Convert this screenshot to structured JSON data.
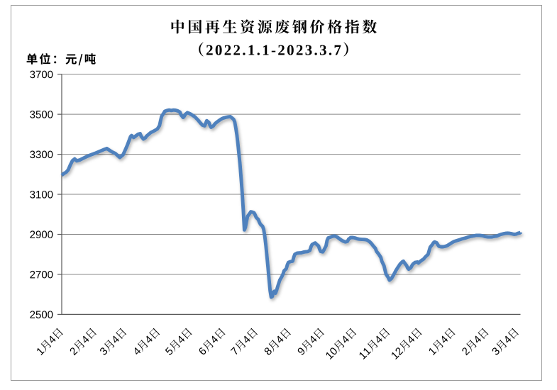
{
  "page": {
    "background": "#ffffff"
  },
  "header": {
    "title": "中国再生资源废钢价格指数",
    "subtitle": "（2022.1.1-2023.3.7）",
    "unit_label": "单位：元/吨"
  },
  "chart_data": {
    "type": "line",
    "title": "中国再生资源废钢价格指数",
    "subtitle": "（2022.1.1-2023.3.7）",
    "unit": "元/吨",
    "unit_label": "单位：元/吨",
    "ylim": [
      2500,
      3700
    ],
    "y_ticks": [
      2500,
      2700,
      2900,
      3100,
      3300,
      3500,
      3700
    ],
    "x_range": [
      "2022-01-04",
      "2023-03-07"
    ],
    "x_ticks": [
      {
        "label": "1月4日",
        "date": "2022-01-04"
      },
      {
        "label": "2月4日",
        "date": "2022-02-04"
      },
      {
        "label": "3月4日",
        "date": "2022-03-04"
      },
      {
        "label": "4月4日",
        "date": "2022-04-04"
      },
      {
        "label": "5月4日",
        "date": "2022-05-04"
      },
      {
        "label": "6月4日",
        "date": "2022-06-04"
      },
      {
        "label": "7月4日",
        "date": "2022-07-04"
      },
      {
        "label": "8月4日",
        "date": "2022-08-04"
      },
      {
        "label": "9月4日",
        "date": "2022-09-04"
      },
      {
        "label": "10月4日",
        "date": "2022-10-04"
      },
      {
        "label": "11月4日",
        "date": "2022-11-04"
      },
      {
        "label": "12月4日",
        "date": "2022-12-04"
      },
      {
        "label": "1月4日",
        "date": "2023-01-04"
      },
      {
        "label": "2月4日",
        "date": "2023-02-04"
      },
      {
        "label": "3月4日",
        "date": "2023-03-04"
      }
    ],
    "grid": "horizontal",
    "legend": "none",
    "line_color": "#4F81BD",
    "series": [
      {
        "name": "废钢价格指数",
        "points": [
          [
            "2022-01-04",
            3195
          ],
          [
            "2022-01-06",
            3204
          ],
          [
            "2022-01-08",
            3210
          ],
          [
            "2022-01-10",
            3222
          ],
          [
            "2022-01-12",
            3247
          ],
          [
            "2022-01-14",
            3268
          ],
          [
            "2022-01-16",
            3277
          ],
          [
            "2022-01-18",
            3267
          ],
          [
            "2022-01-21",
            3272
          ],
          [
            "2022-01-24",
            3280
          ],
          [
            "2022-01-27",
            3288
          ],
          [
            "2022-01-31",
            3297
          ],
          [
            "2022-02-04",
            3305
          ],
          [
            "2022-02-08",
            3314
          ],
          [
            "2022-02-12",
            3323
          ],
          [
            "2022-02-15",
            3329
          ],
          [
            "2022-02-17",
            3322
          ],
          [
            "2022-02-19",
            3315
          ],
          [
            "2022-02-21",
            3309
          ],
          [
            "2022-02-23",
            3304
          ],
          [
            "2022-02-25",
            3294
          ],
          [
            "2022-02-27",
            3284
          ],
          [
            "2022-03-02",
            3297
          ],
          [
            "2022-03-04",
            3320
          ],
          [
            "2022-03-06",
            3345
          ],
          [
            "2022-03-07",
            3359
          ],
          [
            "2022-03-09",
            3388
          ],
          [
            "2022-03-10",
            3394
          ],
          [
            "2022-03-11",
            3389
          ],
          [
            "2022-03-12",
            3384
          ],
          [
            "2022-03-14",
            3392
          ],
          [
            "2022-03-16",
            3400
          ],
          [
            "2022-03-18",
            3403
          ],
          [
            "2022-03-19",
            3390
          ],
          [
            "2022-03-21",
            3376
          ],
          [
            "2022-03-23",
            3383
          ],
          [
            "2022-03-24",
            3391
          ],
          [
            "2022-03-26",
            3400
          ],
          [
            "2022-03-28",
            3409
          ],
          [
            "2022-03-30",
            3414
          ],
          [
            "2022-04-01",
            3420
          ],
          [
            "2022-04-03",
            3427
          ],
          [
            "2022-04-05",
            3443
          ],
          [
            "2022-04-06",
            3468
          ],
          [
            "2022-04-07",
            3490
          ],
          [
            "2022-04-09",
            3506
          ],
          [
            "2022-04-10",
            3515
          ],
          [
            "2022-04-12",
            3519
          ],
          [
            "2022-04-14",
            3521
          ],
          [
            "2022-04-16",
            3519
          ],
          [
            "2022-04-18",
            3521
          ],
          [
            "2022-04-20",
            3520
          ],
          [
            "2022-04-22",
            3517
          ],
          [
            "2022-04-24",
            3511
          ],
          [
            "2022-04-25",
            3497
          ],
          [
            "2022-04-27",
            3484
          ],
          [
            "2022-04-28",
            3490
          ],
          [
            "2022-04-29",
            3499
          ],
          [
            "2022-05-01",
            3508
          ],
          [
            "2022-05-02",
            3506
          ],
          [
            "2022-05-04",
            3501
          ],
          [
            "2022-05-06",
            3494
          ],
          [
            "2022-05-08",
            3487
          ],
          [
            "2022-05-09",
            3481
          ],
          [
            "2022-05-11",
            3470
          ],
          [
            "2022-05-13",
            3457
          ],
          [
            "2022-05-15",
            3446
          ],
          [
            "2022-05-17",
            3442
          ],
          [
            "2022-05-18",
            3455
          ],
          [
            "2022-05-19",
            3468
          ],
          [
            "2022-05-21",
            3459
          ],
          [
            "2022-05-22",
            3445
          ],
          [
            "2022-05-23",
            3435
          ],
          [
            "2022-05-25",
            3441
          ],
          [
            "2022-05-26",
            3448
          ],
          [
            "2022-05-27",
            3455
          ],
          [
            "2022-05-29",
            3463
          ],
          [
            "2022-05-31",
            3471
          ],
          [
            "2022-06-02",
            3478
          ],
          [
            "2022-06-04",
            3482
          ],
          [
            "2022-06-06",
            3485
          ],
          [
            "2022-06-08",
            3487
          ],
          [
            "2022-06-10",
            3488
          ],
          [
            "2022-06-11",
            3484
          ],
          [
            "2022-06-13",
            3475
          ],
          [
            "2022-06-14",
            3462
          ],
          [
            "2022-06-15",
            3432
          ],
          [
            "2022-06-16",
            3398
          ],
          [
            "2022-06-17",
            3352
          ],
          [
            "2022-06-18",
            3300
          ],
          [
            "2022-06-19",
            3248
          ],
          [
            "2022-06-20",
            3180
          ],
          [
            "2022-06-21",
            3105
          ],
          [
            "2022-06-22",
            3020
          ],
          [
            "2022-06-23",
            2922
          ],
          [
            "2022-06-24",
            2935
          ],
          [
            "2022-06-25",
            2965
          ],
          [
            "2022-06-26",
            2990
          ],
          [
            "2022-06-28",
            3005
          ],
          [
            "2022-06-29",
            3013
          ],
          [
            "2022-06-30",
            3012
          ],
          [
            "2022-07-02",
            3008
          ],
          [
            "2022-07-03",
            2998
          ],
          [
            "2022-07-04",
            2985
          ],
          [
            "2022-07-06",
            2974
          ],
          [
            "2022-07-07",
            2960
          ],
          [
            "2022-07-08",
            2950
          ],
          [
            "2022-07-10",
            2940
          ],
          [
            "2022-07-11",
            2925
          ],
          [
            "2022-07-12",
            2890
          ],
          [
            "2022-07-13",
            2845
          ],
          [
            "2022-07-14",
            2790
          ],
          [
            "2022-07-15",
            2735
          ],
          [
            "2022-07-16",
            2675
          ],
          [
            "2022-07-17",
            2618
          ],
          [
            "2022-07-18",
            2586
          ],
          [
            "2022-07-19",
            2590
          ],
          [
            "2022-07-20",
            2612
          ],
          [
            "2022-07-21",
            2616
          ],
          [
            "2022-07-22",
            2606
          ],
          [
            "2022-07-23",
            2620
          ],
          [
            "2022-07-24",
            2638
          ],
          [
            "2022-07-25",
            2655
          ],
          [
            "2022-07-26",
            2672
          ],
          [
            "2022-07-28",
            2690
          ],
          [
            "2022-07-29",
            2702
          ],
          [
            "2022-07-30",
            2718
          ],
          [
            "2022-08-01",
            2728
          ],
          [
            "2022-08-02",
            2748
          ],
          [
            "2022-08-03",
            2760
          ],
          [
            "2022-08-05",
            2764
          ],
          [
            "2022-08-07",
            2766
          ],
          [
            "2022-08-08",
            2786
          ],
          [
            "2022-08-09",
            2800
          ],
          [
            "2022-08-11",
            2806
          ],
          [
            "2022-08-13",
            2807
          ],
          [
            "2022-08-15",
            2808
          ],
          [
            "2022-08-17",
            2811
          ],
          [
            "2022-08-19",
            2813
          ],
          [
            "2022-08-21",
            2814
          ],
          [
            "2022-08-23",
            2820
          ],
          [
            "2022-08-24",
            2838
          ],
          [
            "2022-08-25",
            2849
          ],
          [
            "2022-08-27",
            2855
          ],
          [
            "2022-08-28",
            2857
          ],
          [
            "2022-08-29",
            2851
          ],
          [
            "2022-08-31",
            2842
          ],
          [
            "2022-09-01",
            2826
          ],
          [
            "2022-09-02",
            2815
          ],
          [
            "2022-09-04",
            2812
          ],
          [
            "2022-09-05",
            2821
          ],
          [
            "2022-09-07",
            2843
          ],
          [
            "2022-09-08",
            2870
          ],
          [
            "2022-09-09",
            2882
          ],
          [
            "2022-09-11",
            2886
          ],
          [
            "2022-09-13",
            2890
          ],
          [
            "2022-09-15",
            2892
          ],
          [
            "2022-09-17",
            2888
          ],
          [
            "2022-09-19",
            2880
          ],
          [
            "2022-09-21",
            2872
          ],
          [
            "2022-09-23",
            2866
          ],
          [
            "2022-09-25",
            2862
          ],
          [
            "2022-09-27",
            2865
          ],
          [
            "2022-09-28",
            2876
          ],
          [
            "2022-09-30",
            2884
          ],
          [
            "2022-10-02",
            2884
          ],
          [
            "2022-10-04",
            2882
          ],
          [
            "2022-10-06",
            2878
          ],
          [
            "2022-10-08",
            2876
          ],
          [
            "2022-10-10",
            2875
          ],
          [
            "2022-10-13",
            2874
          ],
          [
            "2022-10-15",
            2872
          ],
          [
            "2022-10-17",
            2866
          ],
          [
            "2022-10-19",
            2856
          ],
          [
            "2022-10-21",
            2842
          ],
          [
            "2022-10-23",
            2830
          ],
          [
            "2022-10-24",
            2815
          ],
          [
            "2022-10-26",
            2802
          ],
          [
            "2022-10-28",
            2785
          ],
          [
            "2022-10-29",
            2765
          ],
          [
            "2022-10-31",
            2743
          ],
          [
            "2022-11-01",
            2720
          ],
          [
            "2022-11-02",
            2700
          ],
          [
            "2022-11-04",
            2684
          ],
          [
            "2022-11-05",
            2671
          ],
          [
            "2022-11-07",
            2680
          ],
          [
            "2022-11-09",
            2698
          ],
          [
            "2022-11-11",
            2719
          ],
          [
            "2022-11-13",
            2736
          ],
          [
            "2022-11-15",
            2752
          ],
          [
            "2022-11-17",
            2763
          ],
          [
            "2022-11-18",
            2766
          ],
          [
            "2022-11-19",
            2758
          ],
          [
            "2022-11-21",
            2744
          ],
          [
            "2022-11-22",
            2732
          ],
          [
            "2022-11-23",
            2726
          ],
          [
            "2022-11-25",
            2734
          ],
          [
            "2022-11-26",
            2744
          ],
          [
            "2022-11-27",
            2752
          ],
          [
            "2022-11-29",
            2760
          ],
          [
            "2022-12-01",
            2762
          ],
          [
            "2022-12-02",
            2757
          ],
          [
            "2022-12-03",
            2762
          ],
          [
            "2022-12-05",
            2770
          ],
          [
            "2022-12-07",
            2777
          ],
          [
            "2022-12-08",
            2784
          ],
          [
            "2022-12-09",
            2790
          ],
          [
            "2022-12-11",
            2800
          ],
          [
            "2022-12-12",
            2818
          ],
          [
            "2022-12-13",
            2836
          ],
          [
            "2022-12-15",
            2849
          ],
          [
            "2022-12-16",
            2858
          ],
          [
            "2022-12-17",
            2862
          ],
          [
            "2022-12-19",
            2858
          ],
          [
            "2022-12-20",
            2849
          ],
          [
            "2022-12-21",
            2841
          ],
          [
            "2022-12-23",
            2838
          ],
          [
            "2022-12-25",
            2838
          ],
          [
            "2022-12-27",
            2840
          ],
          [
            "2022-12-29",
            2844
          ],
          [
            "2022-12-31",
            2851
          ],
          [
            "2023-01-02",
            2858
          ],
          [
            "2023-01-04",
            2864
          ],
          [
            "2023-01-07",
            2869
          ],
          [
            "2023-01-10",
            2874
          ],
          [
            "2023-01-12",
            2878
          ],
          [
            "2023-01-15",
            2882
          ],
          [
            "2023-01-17",
            2886
          ],
          [
            "2023-01-20",
            2890
          ],
          [
            "2023-01-23",
            2893
          ],
          [
            "2023-01-25",
            2895
          ],
          [
            "2023-01-28",
            2895
          ],
          [
            "2023-01-31",
            2893
          ],
          [
            "2023-02-02",
            2889
          ],
          [
            "2023-02-05",
            2887
          ],
          [
            "2023-02-08",
            2887
          ],
          [
            "2023-02-10",
            2889
          ],
          [
            "2023-02-13",
            2892
          ],
          [
            "2023-02-15",
            2896
          ],
          [
            "2023-02-17",
            2900
          ],
          [
            "2023-02-19",
            2903
          ],
          [
            "2023-02-21",
            2905
          ],
          [
            "2023-02-23",
            2906
          ],
          [
            "2023-02-25",
            2905
          ],
          [
            "2023-02-27",
            2903
          ],
          [
            "2023-03-01",
            2900
          ],
          [
            "2023-03-03",
            2901
          ],
          [
            "2023-03-04",
            2904
          ],
          [
            "2023-03-06",
            2907
          ],
          [
            "2023-03-07",
            2909
          ],
          [
            "2023-03-07",
            2910
          ]
        ]
      }
    ]
  },
  "style": {
    "line_color": "#4F81BD",
    "grid_color": "#888888",
    "axis_color": "#595959",
    "border_color": "#9c9c9c",
    "text_color": "#000000"
  }
}
